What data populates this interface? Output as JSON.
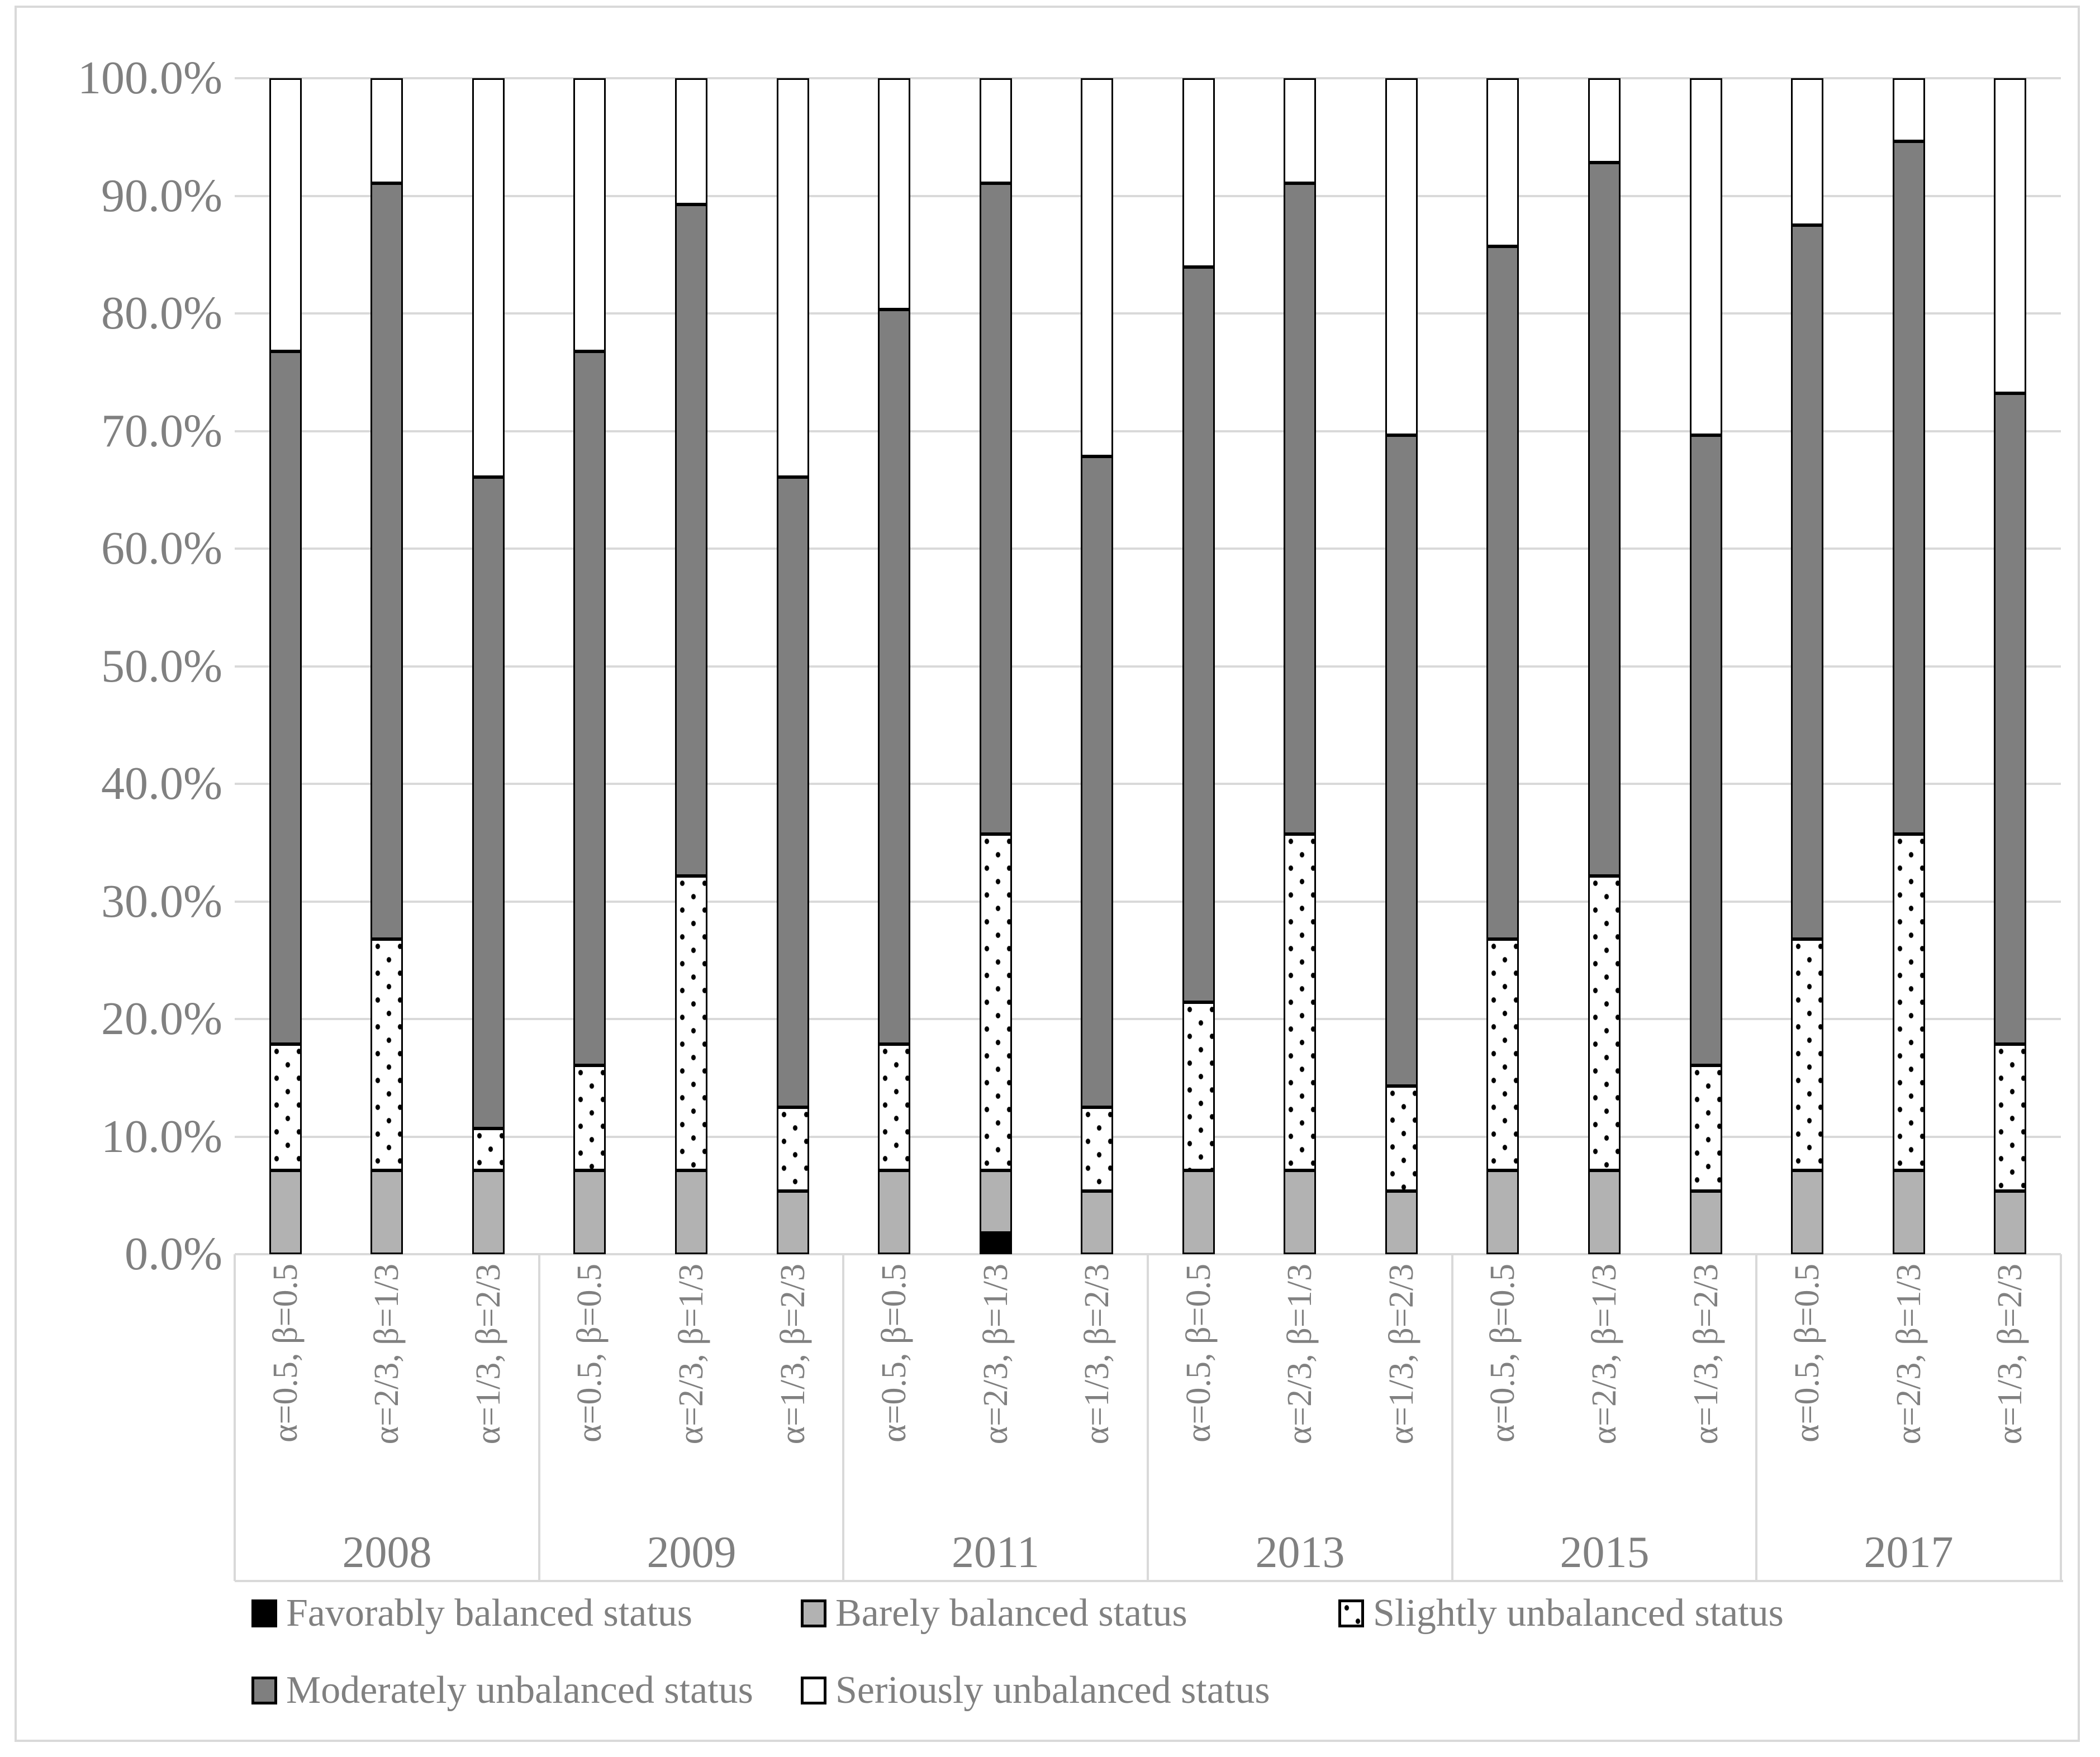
{
  "page": {
    "background": "#ffffff",
    "frame_color": "#d9d9d9"
  },
  "chart_data": {
    "type": "bar",
    "stacked": true,
    "title": "",
    "xlabel": "",
    "ylabel": "",
    "ylim": [
      0,
      100
    ],
    "grid": true,
    "legend_position": "bottom",
    "y_ticks": [
      "100.0%",
      "90.0%",
      "80.0%",
      "70.0%",
      "60.0%",
      "50.0%",
      "40.0%",
      "30.0%",
      "20.0%",
      "10.0%",
      "0.0%"
    ],
    "y_tick_values": [
      100,
      90,
      80,
      70,
      60,
      50,
      40,
      30,
      20,
      10,
      0
    ],
    "series_keys": [
      "favorably",
      "barely",
      "slightly",
      "moderately",
      "seriously"
    ],
    "colors": {
      "favorably": "#000000",
      "barely": "#b2b2b2",
      "slightly_background": "#ffffff",
      "slightly_dots": "#000000",
      "moderately": "#7f7f7f",
      "seriously": "#ffffff",
      "axis_text": "#808080",
      "gridline": "#d9d9d9"
    },
    "legend": [
      {
        "key": "favorably",
        "label": "Favorably balanced status",
        "row": 0,
        "x": 450
      },
      {
        "key": "barely",
        "label": "Barely balanced status",
        "row": 0,
        "x": 1433
      },
      {
        "key": "slightly",
        "label": "Slightly unbalanced status",
        "row": 0,
        "x": 2395
      },
      {
        "key": "moderately",
        "label": "Moderately unbalanced status",
        "row": 1,
        "x": 450
      },
      {
        "key": "seriously",
        "label": "Seriously unbalanced status",
        "row": 1,
        "x": 1433
      }
    ],
    "groups": [
      {
        "year": "2008",
        "bars": [
          {
            "label": "α=0.5,  β=0.5",
            "values": {
              "favorably": 0,
              "barely": 7.14,
              "slightly": 10.71,
              "moderately": 58.93,
              "seriously": 23.21
            }
          },
          {
            "label": "α=2/3,  β=1/3",
            "values": {
              "favorably": 0,
              "barely": 7.14,
              "slightly": 19.64,
              "moderately": 64.29,
              "seriously": 8.93
            }
          },
          {
            "label": "α=1/3,  β=2/3",
            "values": {
              "favorably": 0,
              "barely": 7.14,
              "slightly": 3.57,
              "moderately": 55.36,
              "seriously": 33.93
            }
          }
        ]
      },
      {
        "year": "2009",
        "bars": [
          {
            "label": "α=0.5,  β=0.5",
            "values": {
              "favorably": 0,
              "barely": 7.14,
              "slightly": 8.93,
              "moderately": 60.71,
              "seriously": 23.21
            }
          },
          {
            "label": "α=2/3,  β=1/3",
            "values": {
              "favorably": 0,
              "barely": 7.14,
              "slightly": 25.0,
              "moderately": 57.14,
              "seriously": 10.71
            }
          },
          {
            "label": "α=1/3,  β=2/3",
            "values": {
              "favorably": 0,
              "barely": 5.36,
              "slightly": 7.14,
              "moderately": 53.57,
              "seriously": 33.93
            }
          }
        ]
      },
      {
        "year": "2011",
        "bars": [
          {
            "label": "α=0.5,  β=0.5",
            "values": {
              "favorably": 0,
              "barely": 7.14,
              "slightly": 10.71,
              "moderately": 62.5,
              "seriously": 19.64
            }
          },
          {
            "label": "α=2/3,  β=1/3",
            "values": {
              "favorably": 1.79,
              "barely": 5.36,
              "slightly": 28.57,
              "moderately": 55.36,
              "seriously": 8.93
            }
          },
          {
            "label": "α=1/3,  β=2/3",
            "values": {
              "favorably": 0,
              "barely": 5.36,
              "slightly": 7.14,
              "moderately": 55.36,
              "seriously": 32.14
            }
          }
        ]
      },
      {
        "year": "2013",
        "bars": [
          {
            "label": "α=0.5,  β=0.5",
            "values": {
              "favorably": 0,
              "barely": 7.14,
              "slightly": 14.29,
              "moderately": 62.5,
              "seriously": 16.07
            }
          },
          {
            "label": "α=2/3,  β=1/3",
            "values": {
              "favorably": 0,
              "barely": 7.14,
              "slightly": 28.57,
              "moderately": 55.36,
              "seriously": 8.93
            }
          },
          {
            "label": "α=1/3,  β=2/3",
            "values": {
              "favorably": 0,
              "barely": 5.36,
              "slightly": 8.93,
              "moderately": 55.36,
              "seriously": 30.36
            }
          }
        ]
      },
      {
        "year": "2015",
        "bars": [
          {
            "label": "α=0.5,  β=0.5",
            "values": {
              "favorably": 0,
              "barely": 7.14,
              "slightly": 19.64,
              "moderately": 58.93,
              "seriously": 14.29
            }
          },
          {
            "label": "α=2/3,  β=1/3",
            "values": {
              "favorably": 0,
              "barely": 7.14,
              "slightly": 25.0,
              "moderately": 60.71,
              "seriously": 7.14
            }
          },
          {
            "label": "α=1/3,  β=2/3",
            "values": {
              "favorably": 0,
              "barely": 5.36,
              "slightly": 10.71,
              "moderately": 53.57,
              "seriously": 30.36
            }
          }
        ]
      },
      {
        "year": "2017",
        "bars": [
          {
            "label": "α=0.5,  β=0.5",
            "values": {
              "favorably": 0,
              "barely": 7.14,
              "slightly": 19.64,
              "moderately": 60.71,
              "seriously": 12.5
            }
          },
          {
            "label": "α=2/3,  β=1/3",
            "values": {
              "favorably": 0,
              "barely": 7.14,
              "slightly": 28.57,
              "moderately": 58.93,
              "seriously": 5.36
            }
          },
          {
            "label": "α=1/3,  β=2/3",
            "values": {
              "favorably": 0,
              "barely": 5.36,
              "slightly": 12.5,
              "moderately": 55.36,
              "seriously": 26.79
            }
          }
        ]
      }
    ]
  }
}
